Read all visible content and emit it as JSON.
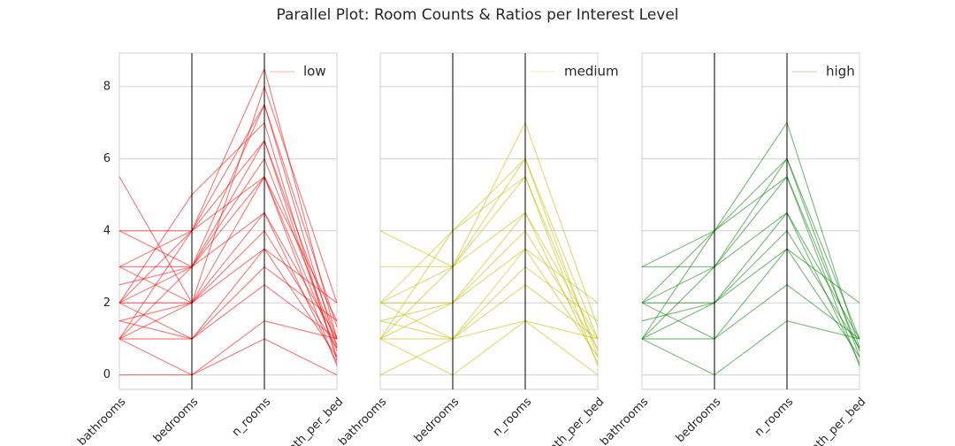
{
  "title": "Parallel Plot: Room Counts & Ratios per Interest Level",
  "chart_data": [
    {
      "type": "parallel",
      "categories": [
        "bathrooms",
        "bedrooms",
        "n_rooms",
        "bath_per_bed"
      ],
      "ylim": [
        -0.4,
        8.93
      ],
      "yticks": [
        0,
        2,
        4,
        6,
        8
      ],
      "grid": true,
      "legend": "upper right",
      "series": [
        {
          "name": "low",
          "color": "#ff0000",
          "values": [
            [
              1,
              0,
              1.5,
              1
            ],
            [
              1,
              1,
              2.5,
              1
            ],
            [
              1,
              2,
              3.5,
              0.5
            ],
            [
              1,
              3,
              4.5,
              0.33
            ],
            [
              2,
              1,
              3.5,
              2
            ],
            [
              2,
              2,
              4.5,
              1
            ],
            [
              2,
              3,
              5.5,
              0.67
            ],
            [
              2,
              4,
              6.5,
              0.5
            ],
            [
              3,
              3,
              6.5,
              1
            ],
            [
              3,
              4,
              7.5,
              0.75
            ],
            [
              4,
              4,
              8.5,
              1
            ],
            [
              1.5,
              2,
              4,
              0.75
            ],
            [
              1.5,
              1,
              3,
              1.5
            ],
            [
              2.5,
              3,
              6,
              0.83
            ],
            [
              0,
              0,
              1,
              0
            ],
            [
              1,
              4,
              5.5,
              0.25
            ],
            [
              3,
              2,
              5.5,
              1.5
            ],
            [
              4,
              3,
              7.5,
              1.33
            ],
            [
              2,
              5,
              7,
              0.4
            ],
            [
              5.5,
              2,
              8,
              2
            ]
          ]
        }
      ]
    },
    {
      "type": "parallel",
      "categories": [
        "bathrooms",
        "bedrooms",
        "n_rooms",
        "bath_per_bed"
      ],
      "ylim": [
        -0.4,
        8.93
      ],
      "yticks": [
        0,
        2,
        4,
        6,
        8
      ],
      "grid": true,
      "legend": "upper right",
      "series": [
        {
          "name": "medium",
          "color": "#bfbf00",
          "values": [
            [
              1,
              0,
              1.5,
              1
            ],
            [
              1,
              1,
              2.5,
              1
            ],
            [
              1,
              2,
              3.5,
              0.5
            ],
            [
              1,
              3,
              4.5,
              0.33
            ],
            [
              2,
              2,
              4.5,
              1
            ],
            [
              2,
              3,
              5.5,
              0.67
            ],
            [
              1,
              4,
              5.5,
              0.25
            ],
            [
              2,
              4,
              6,
              0.5
            ],
            [
              1.5,
              2,
              4,
              0.75
            ],
            [
              3,
              3,
              6,
              1
            ],
            [
              2,
              1,
              3.5,
              2
            ],
            [
              0,
              1,
              1.5,
              0
            ],
            [
              4,
              3,
              7,
              1.33
            ],
            [
              1.5,
              1,
              3,
              1.5
            ]
          ]
        }
      ]
    },
    {
      "type": "parallel",
      "categories": [
        "bathrooms",
        "bedrooms",
        "n_rooms",
        "bath_per_bed"
      ],
      "ylim": [
        -0.4,
        8.93
      ],
      "yticks": [
        0,
        2,
        4,
        6,
        8
      ],
      "grid": true,
      "legend": "upper right",
      "series": [
        {
          "name": "high",
          "color": "#008000",
          "values": [
            [
              1,
              0,
              1.5,
              1
            ],
            [
              1,
              1,
              2.5,
              1
            ],
            [
              1,
              2,
              3.5,
              0.5
            ],
            [
              1,
              3,
              4.5,
              0.33
            ],
            [
              2,
              2,
              4.5,
              1
            ],
            [
              2,
              3,
              5.5,
              0.67
            ],
            [
              1,
              4,
              5.5,
              0.25
            ],
            [
              2,
              4,
              6,
              0.5
            ],
            [
              3,
              3,
              6,
              1
            ],
            [
              1.5,
              2,
              4,
              0.75
            ],
            [
              3,
              4,
              7,
              0.75
            ],
            [
              2,
              1,
              3.5,
              2
            ]
          ]
        }
      ]
    }
  ]
}
